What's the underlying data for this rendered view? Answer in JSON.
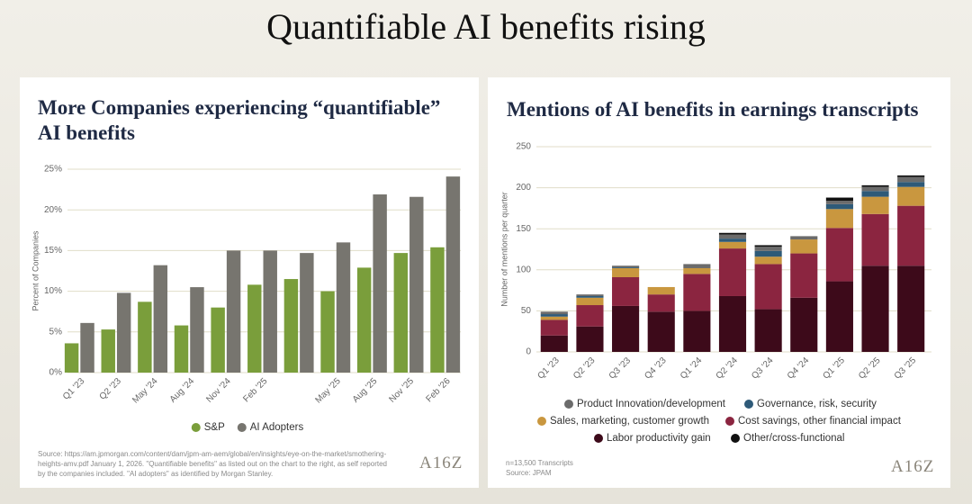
{
  "title": "Quantifiable AI benefits rising",
  "chart_data": [
    {
      "type": "bar",
      "title": "More Companies experiencing “quantifiable” AI benefits",
      "y_label": "Percent of Companies",
      "categories": [
        "Q1 '23",
        "Q2 '23",
        "May '24",
        "Aug '24",
        "Nov '24",
        "Feb '25",
        null,
        "May '25",
        "Aug '25",
        "Nov '25",
        "Feb '26"
      ],
      "series": [
        {
          "name": "S&P",
          "color": "#7a9e3b",
          "values": [
            3.6,
            5.3,
            8.7,
            5.8,
            8.0,
            10.8,
            11.5,
            10.0,
            12.9,
            14.7,
            15.4
          ]
        },
        {
          "name": "AI Adopters",
          "color": "#77756f",
          "values": [
            6.1,
            9.8,
            13.2,
            10.5,
            15.0,
            15.0,
            14.7,
            16.0,
            21.9,
            21.6,
            24.1
          ]
        }
      ],
      "ylim": [
        0,
        25
      ],
      "yticks": [
        {
          "value": 0,
          "label": "0%"
        },
        {
          "value": 5,
          "label": "5%"
        },
        {
          "value": 10,
          "label": "10%"
        },
        {
          "value": 15,
          "label": "15%"
        },
        {
          "value": 20,
          "label": "20%"
        },
        {
          "value": 25,
          "label": "25%"
        }
      ],
      "grid": true,
      "source": "Source: https://am.jpmorgan.com/content/dam/jpm-am-aem/global/en/insights/eye-on-the-market/smothering-heights-amv.pdf January 1, 2026. \"Quantifiable benefits\" as listed out on the chart to the right, as self reported by the companies included. \"AI adopters\" as identified by Morgan Stanley.",
      "logo": "A16Z"
    },
    {
      "type": "stacked_bar",
      "title": "Mentions of AI benefits in earnings transcripts",
      "y_label": "Number of mentions per quarter",
      "categories": [
        "Q1 '23",
        "Q2 '23",
        "Q3 '23",
        "Q4 '23",
        "Q1 '24",
        "Q2 '24",
        "Q3 '24",
        "Q4 '24",
        "Q1 '25",
        "Q2 '25",
        "Q3 '25"
      ],
      "series": [
        {
          "name": "Labor productivity gain",
          "color": "#3d0a1a",
          "values": [
            20,
            31,
            56,
            49,
            50,
            68,
            52,
            66,
            86,
            105,
            105
          ]
        },
        {
          "name": "Cost savings, other financial impact",
          "color": "#8b2540",
          "values": [
            19,
            26,
            35,
            21,
            45,
            58,
            55,
            54,
            65,
            63,
            73
          ]
        },
        {
          "name": "Sales, marketing, customer growth",
          "color": "#c9973f",
          "values": [
            4,
            9,
            11,
            9,
            7,
            8,
            9,
            17,
            23,
            21,
            23
          ]
        },
        {
          "name": "Governance, risk, security",
          "color": "#2e5a78",
          "values": [
            3,
            2,
            1,
            0,
            0,
            4,
            7,
            0,
            6,
            7,
            6
          ]
        },
        {
          "name": "Product Innovation/development",
          "color": "#6b6b6b",
          "values": [
            3,
            2,
            2,
            0,
            5,
            5,
            5,
            4,
            4,
            5,
            6
          ]
        },
        {
          "name": "Other/cross-functional",
          "color": "#111111",
          "values": [
            0,
            0,
            0,
            0,
            0,
            2,
            2,
            0,
            4,
            2,
            2
          ]
        }
      ],
      "ylim": [
        0,
        250
      ],
      "yticks": [
        0,
        50,
        100,
        150,
        200,
        250
      ],
      "grid": true,
      "note": "n=13,500 Transcripts",
      "source": "Source: JPAM",
      "logo": "A16Z"
    }
  ]
}
